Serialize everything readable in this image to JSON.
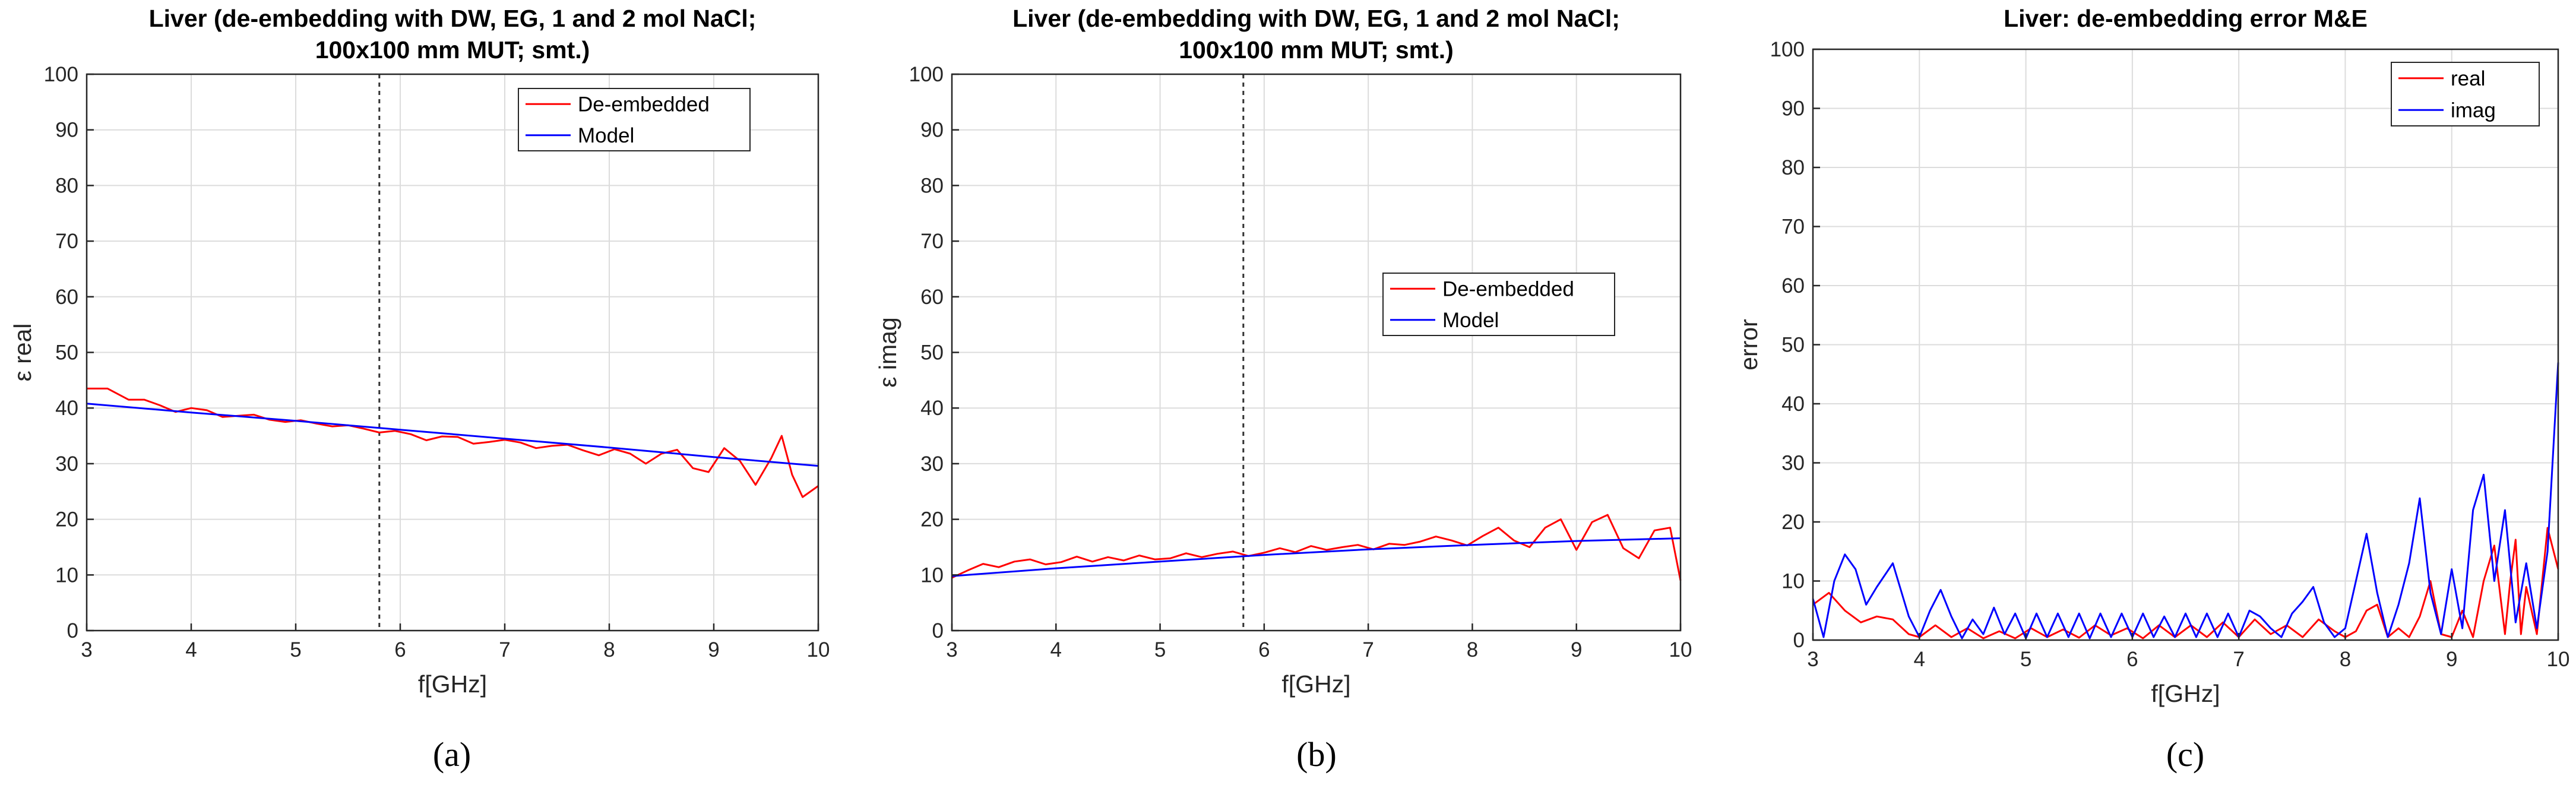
{
  "figure": {
    "background": "#ffffff",
    "grid_color": "#dcdcdc",
    "axis_color": "#262626"
  },
  "chart_data": [
    {
      "type": "line",
      "title": "Liver (de-embedding with DW, EG, 1 and 2 mol NaCl;",
      "subtitle": "100x100 mm MUT; smt.)",
      "xlabel": "f[GHz]",
      "ylabel": "ε real",
      "xlim": [
        3,
        10
      ],
      "ylim": [
        0,
        100
      ],
      "xticks": [
        3,
        4,
        5,
        6,
        7,
        8,
        9,
        10
      ],
      "yticks": [
        0,
        10,
        20,
        30,
        40,
        50,
        60,
        70,
        80,
        90,
        100
      ],
      "grid": true,
      "legend_position": "top-right",
      "vline_x": 5.8,
      "caption": "(a)",
      "series": [
        {
          "name": "De-embedded",
          "color": "#ff0000",
          "x": [
            3.0,
            3.2,
            3.4,
            3.55,
            3.7,
            3.85,
            4.0,
            4.15,
            4.3,
            4.45,
            4.6,
            4.75,
            4.9,
            5.05,
            5.2,
            5.35,
            5.5,
            5.65,
            5.8,
            5.95,
            6.1,
            6.25,
            6.4,
            6.55,
            6.7,
            6.85,
            7.0,
            7.15,
            7.3,
            7.45,
            7.6,
            7.75,
            7.9,
            8.05,
            8.2,
            8.35,
            8.5,
            8.65,
            8.8,
            8.95,
            9.1,
            9.25,
            9.4,
            9.55,
            9.65,
            9.75,
            9.85,
            10.0
          ],
          "y": [
            43.5,
            43.5,
            41.5,
            41.5,
            40.5,
            39.3,
            40.0,
            39.6,
            38.4,
            38.6,
            38.8,
            37.9,
            37.5,
            37.8,
            37.2,
            36.7,
            36.9,
            36.3,
            35.6,
            35.9,
            35.3,
            34.2,
            34.9,
            34.8,
            33.6,
            33.9,
            34.3,
            33.8,
            32.8,
            33.2,
            33.4,
            32.4,
            31.5,
            32.6,
            31.8,
            30.0,
            31.8,
            32.5,
            29.2,
            28.5,
            32.8,
            30.5,
            26.2,
            31.0,
            35.0,
            28.0,
            24.0,
            26.0
          ]
        },
        {
          "name": "Model",
          "color": "#0000ff",
          "x": [
            3.0,
            4.0,
            5.0,
            6.0,
            7.0,
            8.0,
            9.0,
            10.0
          ],
          "y": [
            40.8,
            39.2,
            37.7,
            36.1,
            34.5,
            32.9,
            31.2,
            29.6
          ]
        }
      ]
    },
    {
      "type": "line",
      "title": "Liver (de-embedding with DW, EG, 1 and 2 mol NaCl;",
      "subtitle": "100x100 mm MUT; smt.)",
      "xlabel": "f[GHz]",
      "ylabel": "ε imag",
      "xlim": [
        3,
        10
      ],
      "ylim": [
        0,
        100
      ],
      "xticks": [
        3,
        4,
        5,
        6,
        7,
        8,
        9,
        10
      ],
      "yticks": [
        0,
        10,
        20,
        30,
        40,
        50,
        60,
        70,
        80,
        90,
        100
      ],
      "grid": true,
      "legend_position": "center-right",
      "vline_x": 5.8,
      "caption": "(b)",
      "series": [
        {
          "name": "De-embedded",
          "color": "#ff0000",
          "x": [
            3.0,
            3.15,
            3.3,
            3.45,
            3.6,
            3.75,
            3.9,
            4.05,
            4.2,
            4.35,
            4.5,
            4.65,
            4.8,
            4.95,
            5.1,
            5.25,
            5.4,
            5.55,
            5.7,
            5.85,
            6.0,
            6.15,
            6.3,
            6.45,
            6.6,
            6.75,
            6.9,
            7.05,
            7.2,
            7.35,
            7.5,
            7.65,
            7.8,
            7.95,
            8.1,
            8.25,
            8.4,
            8.55,
            8.7,
            8.85,
            9.0,
            9.15,
            9.3,
            9.45,
            9.6,
            9.75,
            9.9,
            10.0
          ],
          "y": [
            9.5,
            10.8,
            12.0,
            11.4,
            12.4,
            12.8,
            11.9,
            12.3,
            13.3,
            12.4,
            13.2,
            12.6,
            13.5,
            12.8,
            13.0,
            13.9,
            13.2,
            13.8,
            14.2,
            13.4,
            14.0,
            14.8,
            14.1,
            15.2,
            14.5,
            15.0,
            15.4,
            14.6,
            15.6,
            15.4,
            16.0,
            16.9,
            16.2,
            15.3,
            17.0,
            18.5,
            16.2,
            15.0,
            18.5,
            20.0,
            14.5,
            19.5,
            20.8,
            14.8,
            13.0,
            18.0,
            18.5,
            9.0
          ]
        },
        {
          "name": "Model",
          "color": "#0000ff",
          "x": [
            3.0,
            4.0,
            5.0,
            6.0,
            7.0,
            8.0,
            9.0,
            10.0
          ],
          "y": [
            9.8,
            11.2,
            12.4,
            13.6,
            14.6,
            15.4,
            16.1,
            16.6
          ]
        }
      ]
    },
    {
      "type": "line",
      "title": "Liver: de-embedding error M&E",
      "subtitle": "",
      "xlabel": "f[GHz]",
      "ylabel": "error",
      "xlim": [
        3,
        10
      ],
      "ylim": [
        0,
        100
      ],
      "xticks": [
        3,
        4,
        5,
        6,
        7,
        8,
        9,
        10
      ],
      "yticks": [
        0,
        10,
        20,
        30,
        40,
        50,
        60,
        70,
        80,
        90,
        100
      ],
      "grid": true,
      "legend_position": "top-right",
      "vline_x": null,
      "caption": "(c)",
      "series": [
        {
          "name": "real",
          "color": "#ff0000",
          "x": [
            3.0,
            3.15,
            3.3,
            3.45,
            3.6,
            3.75,
            3.9,
            4.0,
            4.15,
            4.3,
            4.45,
            4.6,
            4.75,
            4.9,
            5.05,
            5.2,
            5.35,
            5.5,
            5.65,
            5.8,
            5.95,
            6.1,
            6.25,
            6.4,
            6.55,
            6.7,
            6.85,
            7.0,
            7.15,
            7.3,
            7.45,
            7.6,
            7.75,
            7.9,
            8.0,
            8.1,
            8.2,
            8.3,
            8.4,
            8.5,
            8.6,
            8.7,
            8.8,
            8.9,
            9.0,
            9.1,
            9.2,
            9.3,
            9.4,
            9.5,
            9.55,
            9.6,
            9.65,
            9.7,
            9.8,
            9.9,
            10.0
          ],
          "y": [
            6.0,
            8.0,
            5.0,
            3.0,
            4.0,
            3.5,
            1.0,
            0.5,
            2.5,
            0.5,
            2.0,
            0.3,
            1.5,
            0.3,
            2.0,
            0.5,
            1.8,
            0.4,
            2.5,
            0.8,
            2.0,
            0.3,
            2.5,
            0.5,
            2.5,
            0.5,
            3.0,
            0.5,
            3.5,
            1.0,
            2.5,
            0.5,
            3.5,
            1.5,
            0.5,
            1.5,
            5.0,
            6.0,
            0.5,
            2.0,
            0.5,
            4.0,
            10.0,
            1.0,
            0.5,
            5.0,
            0.5,
            10.0,
            16.0,
            1.0,
            10.0,
            17.0,
            1.0,
            9.0,
            1.0,
            19.0,
            12.0
          ]
        },
        {
          "name": "imag",
          "color": "#0000ff",
          "x": [
            3.0,
            3.1,
            3.2,
            3.3,
            3.4,
            3.5,
            3.6,
            3.75,
            3.9,
            4.0,
            4.1,
            4.2,
            4.3,
            4.4,
            4.5,
            4.6,
            4.7,
            4.8,
            4.9,
            5.0,
            5.1,
            5.2,
            5.3,
            5.4,
            5.5,
            5.6,
            5.7,
            5.8,
            5.9,
            6.0,
            6.1,
            6.2,
            6.3,
            6.4,
            6.5,
            6.6,
            6.7,
            6.8,
            6.9,
            7.0,
            7.1,
            7.2,
            7.3,
            7.4,
            7.5,
            7.6,
            7.7,
            7.8,
            7.9,
            8.0,
            8.1,
            8.2,
            8.3,
            8.4,
            8.5,
            8.6,
            8.7,
            8.8,
            8.9,
            9.0,
            9.1,
            9.2,
            9.3,
            9.4,
            9.5,
            9.6,
            9.7,
            9.8,
            9.9,
            10.0
          ],
          "y": [
            7.0,
            0.5,
            10.0,
            14.5,
            12.0,
            6.0,
            9.0,
            13.0,
            4.0,
            0.5,
            5.0,
            8.5,
            4.0,
            0.3,
            3.5,
            1.0,
            5.5,
            1.0,
            4.5,
            0.3,
            4.5,
            0.5,
            4.5,
            0.5,
            4.5,
            0.3,
            4.5,
            0.5,
            4.5,
            0.5,
            4.5,
            0.5,
            4.0,
            0.5,
            4.5,
            0.5,
            4.5,
            0.5,
            4.5,
            0.5,
            5.0,
            4.0,
            2.0,
            0.5,
            4.5,
            6.5,
            9.0,
            3.0,
            0.5,
            2.0,
            10.0,
            18.0,
            8.0,
            0.5,
            6.0,
            13.0,
            24.0,
            8.0,
            1.0,
            12.0,
            2.0,
            22.0,
            28.0,
            10.0,
            22.0,
            3.0,
            13.0,
            2.0,
            15.0,
            47.0
          ]
        }
      ]
    }
  ]
}
